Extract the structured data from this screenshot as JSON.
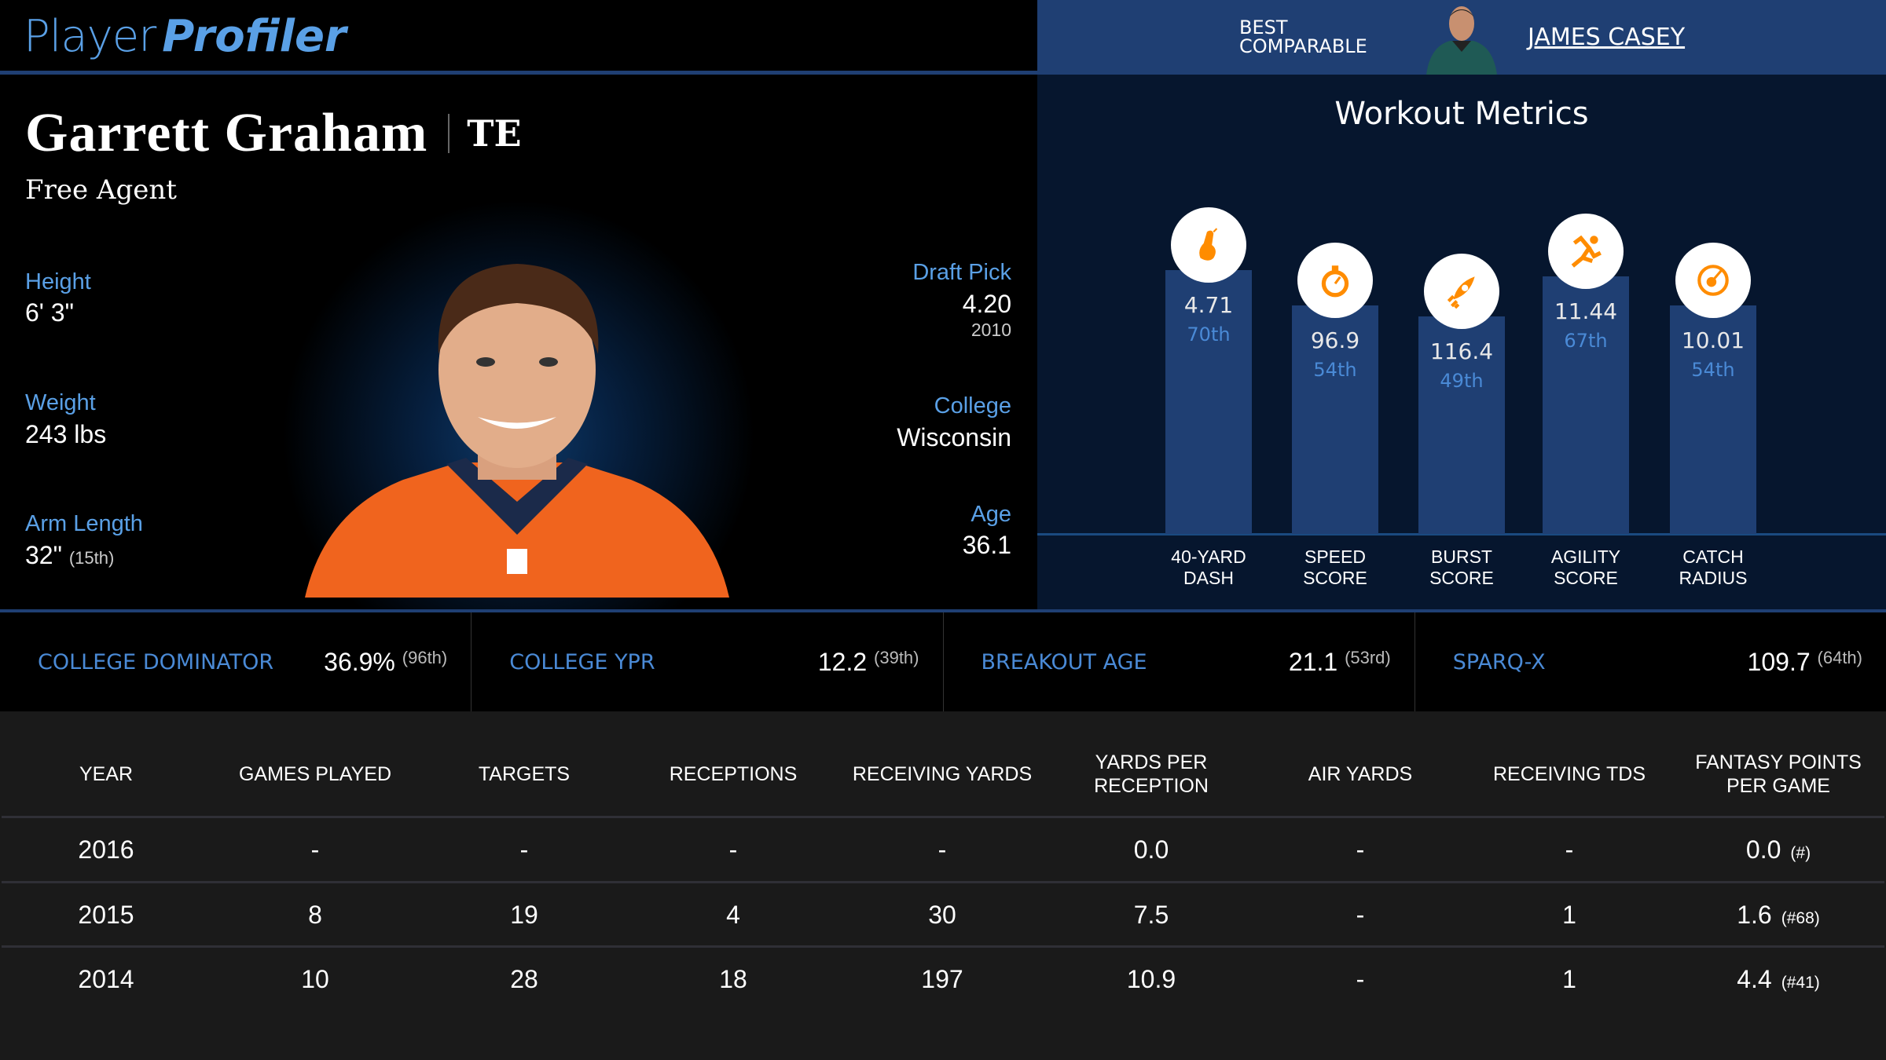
{
  "logo": {
    "part1": "Player",
    "part2": "Profiler"
  },
  "comparable": {
    "label_line1": "BEST",
    "label_line2": "COMPARABLE",
    "name": "JAMES CASEY"
  },
  "player": {
    "name": "Garrett Graham",
    "position": "TE",
    "team": "Free Agent",
    "height_label": "Height",
    "height": "6' 3\"",
    "weight_label": "Weight",
    "weight": "243 lbs",
    "arm_label": "Arm Length",
    "arm": "32\"",
    "arm_rank": "(15th)",
    "draft_label": "Draft Pick",
    "draft_pick": "4.20",
    "draft_year": "2010",
    "college_label": "College",
    "college": "Wisconsin",
    "age_label": "Age",
    "age": "36.1"
  },
  "workout": {
    "title": "Workout Metrics",
    "accent": "#ff8c00",
    "metrics": [
      {
        "l1": "40-YARD",
        "l2": "DASH",
        "value": "4.71",
        "pct": "70th",
        "percentile": 70,
        "icon": "shoe-icon"
      },
      {
        "l1": "SPEED",
        "l2": "SCORE",
        "value": "96.9",
        "pct": "54th",
        "percentile": 54,
        "icon": "stopwatch-icon"
      },
      {
        "l1": "BURST",
        "l2": "SCORE",
        "value": "116.4",
        "pct": "49th",
        "percentile": 49,
        "icon": "rocket-icon"
      },
      {
        "l1": "AGILITY",
        "l2": "SCORE",
        "value": "11.44",
        "pct": "67th",
        "percentile": 67,
        "icon": "runner-icon"
      },
      {
        "l1": "CATCH",
        "l2": "RADIUS",
        "value": "10.01",
        "pct": "54th",
        "percentile": 54,
        "icon": "target-icon"
      }
    ]
  },
  "college_stats": [
    {
      "label": "COLLEGE DOMINATOR",
      "value": "36.9%",
      "rank": "(96th)"
    },
    {
      "label": "COLLEGE YPR",
      "value": "12.2",
      "rank": "(39th)"
    },
    {
      "label": "BREAKOUT AGE",
      "value": "21.1",
      "rank": "(53rd)"
    },
    {
      "label": "SPARQ-X",
      "value": "109.7",
      "rank": "(64th)"
    }
  ],
  "table": {
    "headers": [
      "YEAR",
      "GAMES PLAYED",
      "TARGETS",
      "RECEPTIONS",
      "RECEIVING YARDS",
      "YARDS PER RECEPTION",
      "AIR YARDS",
      "RECEIVING TDS",
      "FANTASY POINTS PER GAME"
    ],
    "rows": [
      [
        "2016",
        "-",
        "-",
        "-",
        "-",
        "0.0",
        "-",
        "-",
        "0.0",
        "(#)"
      ],
      [
        "2015",
        "8",
        "19",
        "4",
        "30",
        "7.5",
        "-",
        "1",
        "1.6",
        "(#68)"
      ],
      [
        "2014",
        "10",
        "28",
        "18",
        "197",
        "10.9",
        "-",
        "1",
        "4.4",
        "(#41)"
      ]
    ]
  }
}
